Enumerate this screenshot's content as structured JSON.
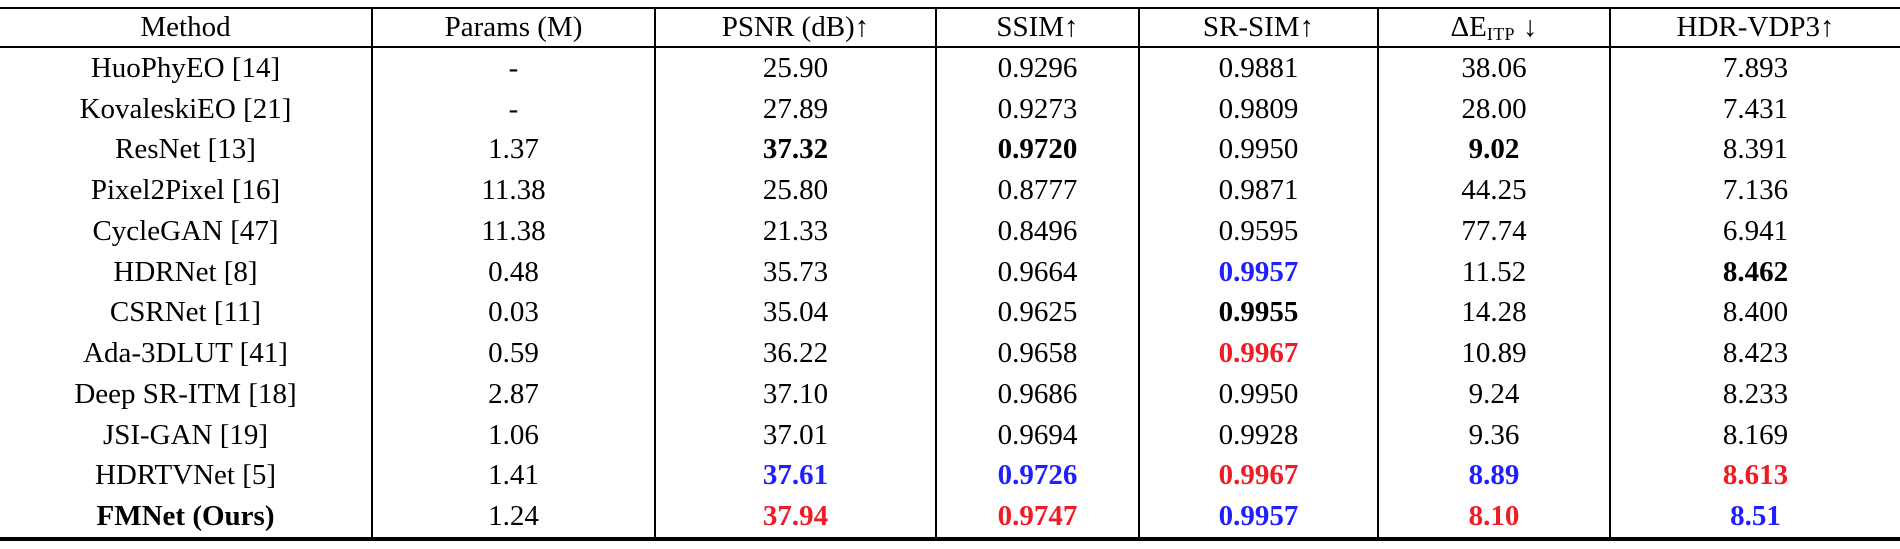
{
  "colors": {
    "best_value": "#ee1c25",
    "second_best_value": "#1f1fff",
    "text": "#000000",
    "background": "#ffffff",
    "rule": "#000000"
  },
  "table": {
    "headers": [
      {
        "label": "Method"
      },
      {
        "label": "Params (M)"
      },
      {
        "label": "PSNR (dB)↑"
      },
      {
        "label": "SSIM↑"
      },
      {
        "label": "SR-SIM↑"
      },
      {
        "main": "ΔE",
        "sub": "ITP",
        "arrow": "↓"
      },
      {
        "label": "HDR-VDP3↑"
      }
    ],
    "rows": [
      {
        "method": {
          "text": "HuoPhyEO [14]",
          "style": "normal"
        },
        "values": [
          {
            "text": "-",
            "style": "normal"
          },
          {
            "text": "25.90",
            "style": "normal"
          },
          {
            "text": "0.9296",
            "style": "normal"
          },
          {
            "text": "0.9881",
            "style": "normal"
          },
          {
            "text": "38.06",
            "style": "normal"
          },
          {
            "text": "7.893",
            "style": "normal"
          }
        ]
      },
      {
        "method": {
          "text": "KovaleskiEO [21]",
          "style": "normal"
        },
        "values": [
          {
            "text": "-",
            "style": "normal"
          },
          {
            "text": "27.89",
            "style": "normal"
          },
          {
            "text": "0.9273",
            "style": "normal"
          },
          {
            "text": "0.9809",
            "style": "normal"
          },
          {
            "text": "28.00",
            "style": "normal"
          },
          {
            "text": "7.431",
            "style": "normal"
          }
        ]
      },
      {
        "method": {
          "text": "ResNet [13]",
          "style": "normal"
        },
        "values": [
          {
            "text": "1.37",
            "style": "normal"
          },
          {
            "text": "37.32",
            "style": "bold"
          },
          {
            "text": "0.9720",
            "style": "bold"
          },
          {
            "text": "0.9950",
            "style": "normal"
          },
          {
            "text": "9.02",
            "style": "bold"
          },
          {
            "text": "8.391",
            "style": "normal"
          }
        ]
      },
      {
        "method": {
          "text": "Pixel2Pixel [16]",
          "style": "normal"
        },
        "values": [
          {
            "text": "11.38",
            "style": "normal"
          },
          {
            "text": "25.80",
            "style": "normal"
          },
          {
            "text": "0.8777",
            "style": "normal"
          },
          {
            "text": "0.9871",
            "style": "normal"
          },
          {
            "text": "44.25",
            "style": "normal"
          },
          {
            "text": "7.136",
            "style": "normal"
          }
        ]
      },
      {
        "method": {
          "text": "CycleGAN [47]",
          "style": "normal"
        },
        "values": [
          {
            "text": "11.38",
            "style": "normal"
          },
          {
            "text": "21.33",
            "style": "normal"
          },
          {
            "text": "0.8496",
            "style": "normal"
          },
          {
            "text": "0.9595",
            "style": "normal"
          },
          {
            "text": "77.74",
            "style": "normal"
          },
          {
            "text": "6.941",
            "style": "normal"
          }
        ]
      },
      {
        "method": {
          "text": "HDRNet [8]",
          "style": "normal"
        },
        "values": [
          {
            "text": "0.48",
            "style": "normal"
          },
          {
            "text": "35.73",
            "style": "normal"
          },
          {
            "text": "0.9664",
            "style": "normal"
          },
          {
            "text": "0.9957",
            "style": "blue"
          },
          {
            "text": "11.52",
            "style": "normal"
          },
          {
            "text": "8.462",
            "style": "bold"
          }
        ]
      },
      {
        "method": {
          "text": "CSRNet [11]",
          "style": "normal"
        },
        "values": [
          {
            "text": "0.03",
            "style": "normal"
          },
          {
            "text": "35.04",
            "style": "normal"
          },
          {
            "text": "0.9625",
            "style": "normal"
          },
          {
            "text": "0.9955",
            "style": "bold"
          },
          {
            "text": "14.28",
            "style": "normal"
          },
          {
            "text": "8.400",
            "style": "normal"
          }
        ]
      },
      {
        "method": {
          "text": "Ada-3DLUT [41]",
          "style": "normal"
        },
        "values": [
          {
            "text": "0.59",
            "style": "normal"
          },
          {
            "text": "36.22",
            "style": "normal"
          },
          {
            "text": "0.9658",
            "style": "normal"
          },
          {
            "text": "0.9967",
            "style": "red"
          },
          {
            "text": "10.89",
            "style": "normal"
          },
          {
            "text": "8.423",
            "style": "normal"
          }
        ]
      },
      {
        "method": {
          "text": "Deep SR-ITM [18]",
          "style": "normal"
        },
        "values": [
          {
            "text": "2.87",
            "style": "normal"
          },
          {
            "text": "37.10",
            "style": "normal"
          },
          {
            "text": "0.9686",
            "style": "normal"
          },
          {
            "text": "0.9950",
            "style": "normal"
          },
          {
            "text": "9.24",
            "style": "normal"
          },
          {
            "text": "8.233",
            "style": "normal"
          }
        ]
      },
      {
        "method": {
          "text": "JSI-GAN [19]",
          "style": "normal"
        },
        "values": [
          {
            "text": "1.06",
            "style": "normal"
          },
          {
            "text": "37.01",
            "style": "normal"
          },
          {
            "text": "0.9694",
            "style": "normal"
          },
          {
            "text": "0.9928",
            "style": "normal"
          },
          {
            "text": "9.36",
            "style": "normal"
          },
          {
            "text": "8.169",
            "style": "normal"
          }
        ]
      },
      {
        "method": {
          "text": "HDRTVNet [5]",
          "style": "normal"
        },
        "values": [
          {
            "text": "1.41",
            "style": "normal"
          },
          {
            "text": "37.61",
            "style": "blue"
          },
          {
            "text": "0.9726",
            "style": "blue"
          },
          {
            "text": "0.9967",
            "style": "red"
          },
          {
            "text": "8.89",
            "style": "blue"
          },
          {
            "text": "8.613",
            "style": "red"
          }
        ]
      },
      {
        "method": {
          "text": "FMNet (Ours)",
          "style": "bold"
        },
        "values": [
          {
            "text": "1.24",
            "style": "normal"
          },
          {
            "text": "37.94",
            "style": "red"
          },
          {
            "text": "0.9747",
            "style": "red"
          },
          {
            "text": "0.9957",
            "style": "blue"
          },
          {
            "text": "8.10",
            "style": "red"
          },
          {
            "text": "8.51",
            "style": "blue"
          }
        ]
      }
    ]
  }
}
